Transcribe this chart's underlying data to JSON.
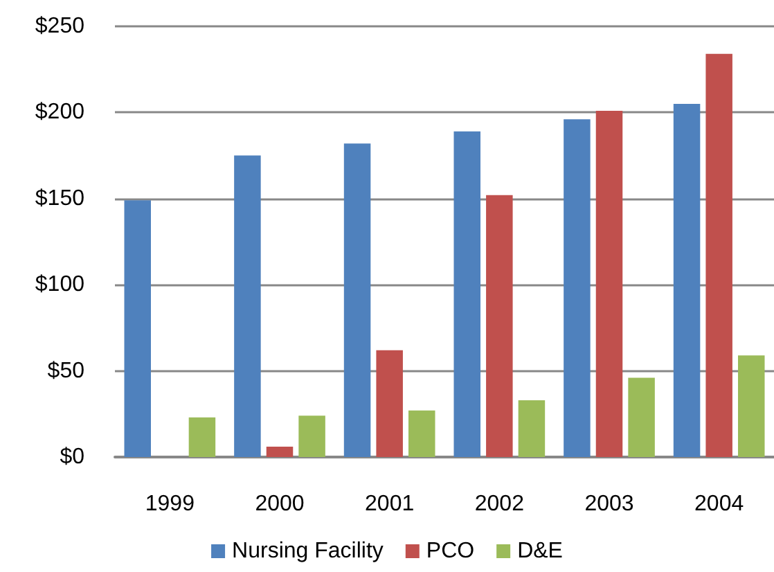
{
  "chart_data": {
    "type": "bar",
    "categories": [
      "1999",
      "2000",
      "2001",
      "2002",
      "2003",
      "2004"
    ],
    "series": [
      {
        "name": "Nursing Facility",
        "color": "#4f81bd",
        "values": [
          149,
          175,
          182,
          189,
          196,
          205
        ]
      },
      {
        "name": "PCO",
        "color": "#c0504d",
        "values": [
          null,
          6,
          62,
          152,
          201,
          234
        ]
      },
      {
        "name": "D&E",
        "color": "#9bbb59",
        "values": [
          23,
          24,
          27,
          33,
          46,
          59
        ]
      }
    ],
    "ylim": [
      0,
      250
    ],
    "yticks": [
      {
        "value": 0,
        "label": "$0"
      },
      {
        "value": 50,
        "label": "$50"
      },
      {
        "value": 100,
        "label": "$100"
      },
      {
        "value": 150,
        "label": "$150"
      },
      {
        "value": 200,
        "label": "$200"
      },
      {
        "value": 250,
        "label": "$250"
      }
    ],
    "grid": "y",
    "legend": "bottom"
  }
}
